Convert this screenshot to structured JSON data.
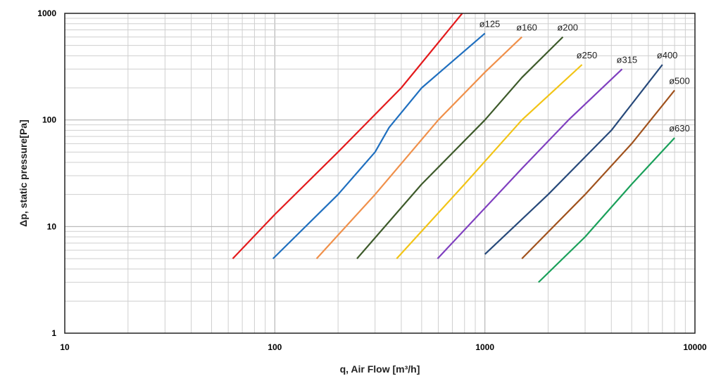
{
  "chart_data": {
    "type": "line",
    "xlabel": "q, Air Flow [m³/h]",
    "ylabel": "Δp, static pressure[Pa]",
    "xscale": "log",
    "yscale": "log",
    "xlim": [
      10,
      10000
    ],
    "ylim": [
      1,
      1000
    ],
    "grid": true,
    "x_ticks": [
      "10",
      "100",
      "1000",
      "10000"
    ],
    "y_ticks": [
      "1",
      "10",
      "100",
      "1000"
    ],
    "series": [
      {
        "name": "",
        "color": "#e31a1c",
        "x": [
          63,
          100,
          200,
          400,
          780
        ],
        "y": [
          5,
          13,
          50,
          200,
          1000
        ]
      },
      {
        "name": "ø125",
        "color": "#1f6fbf",
        "x": [
          98,
          200,
          300,
          350,
          500,
          1000
        ],
        "y": [
          5,
          20,
          50,
          85,
          200,
          650
        ]
      },
      {
        "name": "ø160",
        "color": "#f0904a",
        "x": [
          158,
          300,
          600,
          1000,
          1500
        ],
        "y": [
          5,
          20,
          100,
          280,
          600
        ]
      },
      {
        "name": "ø200",
        "color": "#3d5a2a",
        "x": [
          246,
          500,
          1000,
          1500,
          2350
        ],
        "y": [
          5,
          25,
          100,
          250,
          600
        ]
      },
      {
        "name": "ø250",
        "color": "#f2c416",
        "x": [
          380,
          800,
          1500,
          2900
        ],
        "y": [
          5,
          25,
          100,
          330
        ]
      },
      {
        "name": "ø315",
        "color": "#7f3fbf",
        "x": [
          595,
          1500,
          2500,
          4500
        ],
        "y": [
          5,
          35,
          100,
          300
        ]
      },
      {
        "name": "ø400",
        "color": "#27497a",
        "x": [
          1000,
          2000,
          4000,
          7000
        ],
        "y": [
          5.5,
          20,
          80,
          330
        ]
      },
      {
        "name": "ø500",
        "color": "#a0521d",
        "x": [
          1500,
          3000,
          5000,
          8000
        ],
        "y": [
          5,
          20,
          60,
          190
        ]
      },
      {
        "name": "ø630",
        "color": "#1aa05a",
        "x": [
          1800,
          3000,
          5000,
          8000
        ],
        "y": [
          3,
          8,
          25,
          68
        ]
      }
    ]
  }
}
